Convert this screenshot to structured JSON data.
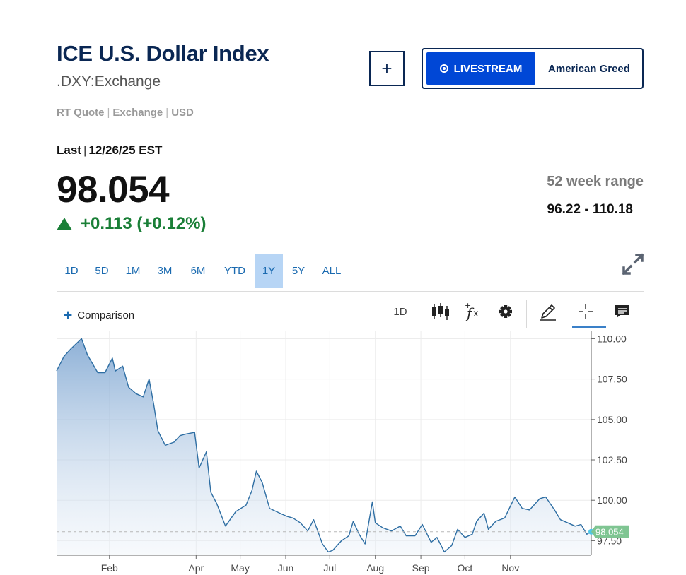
{
  "header": {
    "title": "ICE U.S. Dollar Index",
    "symbol": ".DXY:Exchange",
    "quote_type": "RT Quote",
    "quote_source": "Exchange",
    "quote_currency": "USD",
    "add_label": "+",
    "livestream_label": "LIVESTREAM",
    "show_label": "American Greed"
  },
  "quote": {
    "last_label": "Last",
    "last_date": "12/26/25 EST",
    "price": "98.054",
    "change": "+0.113 (+0.12%)",
    "range_label": "52 week range",
    "range_value": "96.22 - 110.18"
  },
  "tabs": [
    {
      "label": "1D",
      "active": false
    },
    {
      "label": "5D",
      "active": false
    },
    {
      "label": "1M",
      "active": false
    },
    {
      "label": "3M",
      "active": false
    },
    {
      "label": "6M",
      "active": false
    },
    {
      "label": "YTD",
      "active": false
    },
    {
      "label": "1Y",
      "active": true
    },
    {
      "label": "5Y",
      "active": false
    },
    {
      "label": "ALL",
      "active": false
    }
  ],
  "toolbar": {
    "comparison_label": "Comparison",
    "interval_label": "1D",
    "icons": [
      "candlestick-icon",
      "function-icon",
      "gear-icon",
      "pencil-icon",
      "crosshair-icon",
      "comment-icon"
    ]
  },
  "colors": {
    "title": "#0a2753",
    "accent": "#0047d6",
    "positive": "#1a7f37",
    "line": "#2e6ea3",
    "price_tag": "#7fc592",
    "active_tab": "#b7d5f5"
  },
  "chart_data": {
    "type": "area",
    "title": "",
    "xlabel": "",
    "ylabel": "",
    "ylim": [
      96.6,
      110.5
    ],
    "yticks": [
      97.5,
      100,
      102.5,
      105,
      107.5,
      110
    ],
    "ytick_labels": [
      "97.50",
      "100.00",
      "102.50",
      "105.00",
      "107.50",
      "110.00"
    ],
    "xtick_labels": [
      "Feb",
      "Apr",
      "May",
      "Jun",
      "Jul",
      "Aug",
      "Sep",
      "Oct",
      "Nov"
    ],
    "xtick_dates": [
      "2025-02-01",
      "2025-04-01",
      "2025-05-01",
      "2025-06-01",
      "2025-07-01",
      "2025-08-01",
      "2025-09-01",
      "2025-10-01",
      "2025-11-01"
    ],
    "x_range": [
      "2024-12-27",
      "2025-12-26"
    ],
    "last_value_label": "98.054",
    "last_value": 98.054,
    "grid": true,
    "series": [
      {
        "dates": [
          "2024-12-27",
          "2025-01-01",
          "2025-01-06",
          "2025-01-13",
          "2025-01-17",
          "2025-01-24",
          "2025-01-29",
          "2025-02-03",
          "2025-02-05",
          "2025-02-10",
          "2025-02-14",
          "2025-02-19",
          "2025-02-24",
          "2025-02-28",
          "2025-03-03",
          "2025-03-06",
          "2025-03-11",
          "2025-03-17",
          "2025-03-21",
          "2025-03-25",
          "2025-03-31",
          "2025-04-03",
          "2025-04-08",
          "2025-04-11",
          "2025-04-15",
          "2025-04-21",
          "2025-04-28",
          "2025-05-05",
          "2025-05-09",
          "2025-05-12",
          "2025-05-16",
          "2025-05-21",
          "2025-05-28",
          "2025-06-02",
          "2025-06-06",
          "2025-06-11",
          "2025-06-16",
          "2025-06-20",
          "2025-06-26",
          "2025-06-30",
          "2025-07-03",
          "2025-07-09",
          "2025-07-14",
          "2025-07-17",
          "2025-07-21",
          "2025-07-25",
          "2025-07-30",
          "2025-08-01",
          "2025-08-06",
          "2025-08-12",
          "2025-08-18",
          "2025-08-22",
          "2025-08-28",
          "2025-09-02",
          "2025-09-08",
          "2025-09-12",
          "2025-09-17",
          "2025-09-22",
          "2025-09-26",
          "2025-10-01",
          "2025-10-06",
          "2025-10-09",
          "2025-10-14",
          "2025-10-17",
          "2025-10-22",
          "2025-10-28",
          "2025-11-04",
          "2025-11-09",
          "2025-11-14",
          "2025-11-21",
          "2025-11-25",
          "2025-12-01",
          "2025-12-05",
          "2025-12-10",
          "2025-12-15",
          "2025-12-19",
          "2025-12-23",
          "2025-12-26"
        ],
        "values": [
          108.0,
          108.9,
          109.4,
          110.0,
          109.0,
          107.9,
          107.9,
          108.8,
          108.0,
          108.3,
          107.0,
          106.6,
          106.4,
          107.5,
          106.0,
          104.3,
          103.4,
          103.6,
          104.0,
          104.1,
          104.2,
          102.0,
          103.0,
          100.5,
          99.8,
          98.4,
          99.3,
          99.7,
          100.6,
          101.8,
          101.1,
          99.5,
          99.2,
          99.0,
          98.9,
          98.6,
          98.1,
          98.8,
          97.3,
          96.8,
          96.9,
          97.5,
          97.8,
          98.7,
          97.9,
          97.3,
          99.9,
          98.6,
          98.3,
          98.1,
          98.4,
          97.8,
          97.8,
          98.5,
          97.4,
          97.7,
          96.8,
          97.2,
          98.2,
          97.7,
          97.9,
          98.7,
          99.2,
          98.2,
          98.7,
          98.9,
          100.2,
          99.5,
          99.4,
          100.1,
          100.2,
          99.4,
          98.8,
          98.6,
          98.4,
          98.5,
          97.9,
          98.054
        ]
      }
    ]
  }
}
